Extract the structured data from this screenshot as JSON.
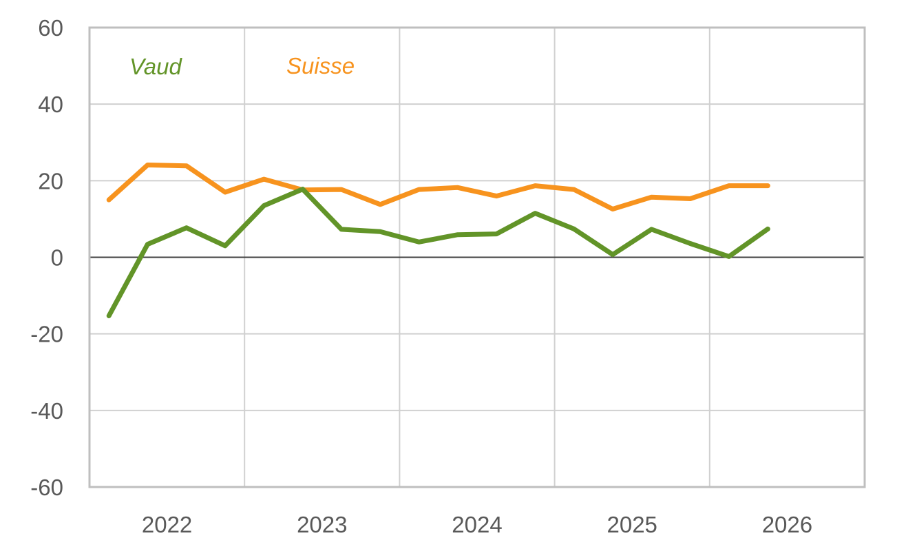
{
  "chart_data": {
    "type": "line",
    "title": "",
    "xlabel": "",
    "ylabel": "",
    "ylim": [
      -60,
      60
    ],
    "yticks": [
      "60",
      "40",
      "20",
      "0",
      "-20",
      "-40",
      "-60"
    ],
    "xticks": [
      "2022",
      "2023",
      "2024",
      "2025",
      "2026"
    ],
    "grid": true,
    "legend": "top-left, inline",
    "x": [
      "2022-Q1",
      "2022-Q2",
      "2022-Q3",
      "2022-Q4",
      "2023-Q1",
      "2023-Q2",
      "2023-Q3",
      "2023-Q4",
      "2024-Q1",
      "2024-Q2",
      "2024-Q3",
      "2024-Q4",
      "2025-Q1",
      "2025-Q2",
      "2025-Q3",
      "2025-Q4",
      "2026-Q1",
      "2026-Q2"
    ],
    "series": [
      {
        "name": "Vaud",
        "color": "#629428",
        "values": [
          -15.3,
          3.4,
          7.7,
          3.0,
          13.5,
          17.8,
          7.3,
          6.7,
          4.0,
          5.9,
          6.1,
          11.5,
          7.4,
          0.7,
          7.3,
          3.6,
          0.2,
          7.4
        ]
      },
      {
        "name": "Suisse",
        "color": "#F7931E",
        "values": [
          15.0,
          24.1,
          23.9,
          17.0,
          20.4,
          17.6,
          17.7,
          13.8,
          17.7,
          18.2,
          16.0,
          18.7,
          17.7,
          12.6,
          15.7,
          15.3,
          18.7,
          18.7
        ]
      }
    ]
  }
}
